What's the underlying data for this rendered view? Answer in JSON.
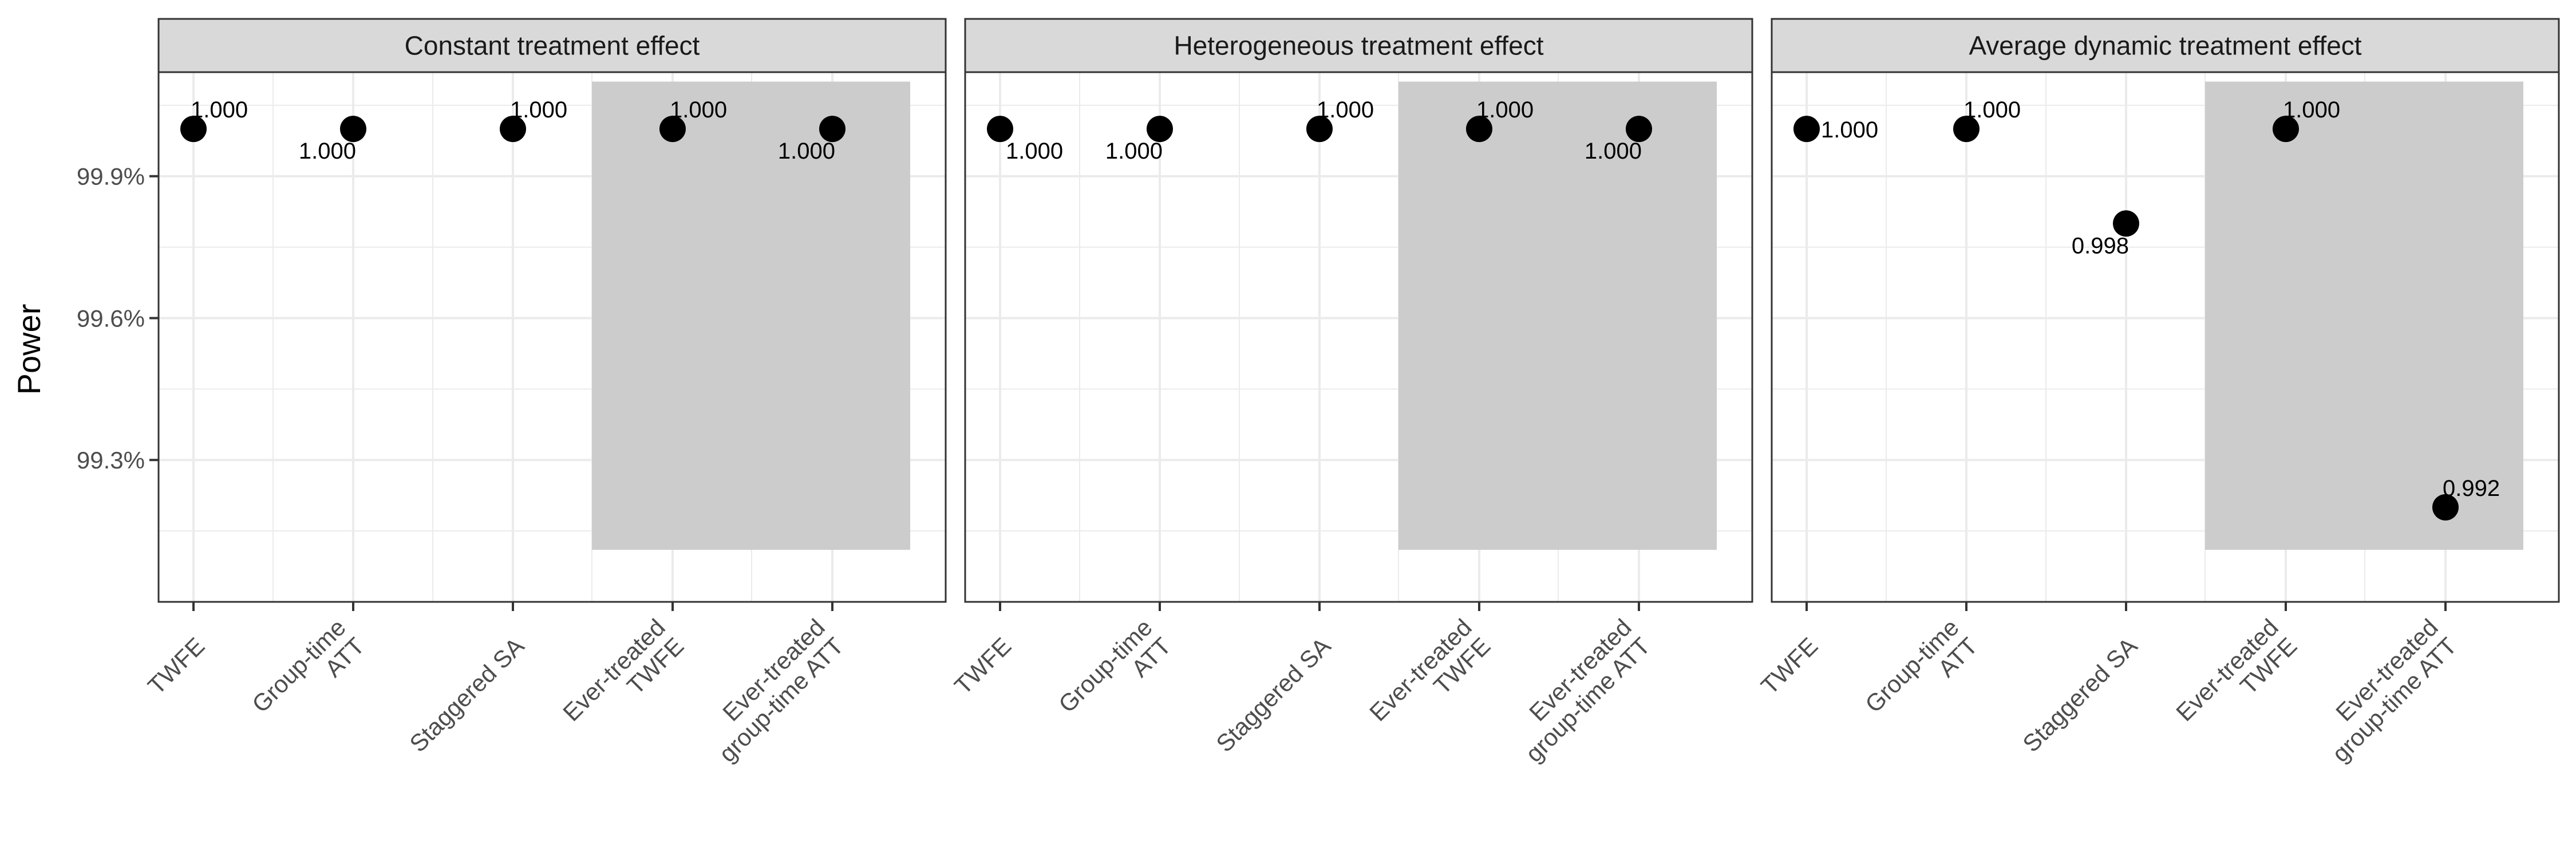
{
  "chart_data": {
    "type": "scatter",
    "ylabel": "Power",
    "ylim": [
      0.99,
      1.0012
    ],
    "yticks": [
      {
        "value": 0.993,
        "label": "99.3%"
      },
      {
        "value": 0.996,
        "label": "99.6%"
      },
      {
        "value": 0.999,
        "label": "99.9%"
      }
    ],
    "categories": [
      [
        "TWFE"
      ],
      [
        "Group-time",
        "ATT"
      ],
      [
        "Staggered SA"
      ],
      [
        "Ever-treated",
        "TWFE"
      ],
      [
        "Ever-treated",
        "group-time ATT"
      ]
    ],
    "shaded_categories": [
      3,
      4
    ],
    "grid": true,
    "legend": "none",
    "colors": {
      "point": "#000000",
      "shade": "#cccccc",
      "strip_bg": "#d9d9d9",
      "grid": "#ebebeb",
      "border": "#333333"
    },
    "panels": [
      {
        "title": "Constant treatment effect",
        "values": [
          1.0,
          1.0,
          1.0,
          1.0,
          1.0
        ],
        "labels": [
          "1.000",
          "1.000",
          "1.000",
          "1.000",
          "1.000"
        ],
        "label_pos": [
          "above-right",
          "below-left",
          "above-right",
          "above-right",
          "below-left"
        ]
      },
      {
        "title": "Heterogeneous treatment effect",
        "values": [
          1.0,
          1.0,
          1.0,
          1.0,
          1.0
        ],
        "labels": [
          "1.000",
          "1.000",
          "1.000",
          "1.000",
          "1.000"
        ],
        "label_pos": [
          "below-right",
          "below-left",
          "above-right",
          "above-right",
          "below-left"
        ]
      },
      {
        "title": "Average dynamic treatment effect",
        "values": [
          1.0,
          1.0,
          0.998,
          1.0,
          0.992
        ],
        "labels": [
          "1.000",
          "1.000",
          "0.998",
          "1.000",
          "0.992"
        ],
        "label_pos": [
          "right",
          "above-right",
          "below-left",
          "above-right",
          "above-right"
        ]
      }
    ]
  }
}
